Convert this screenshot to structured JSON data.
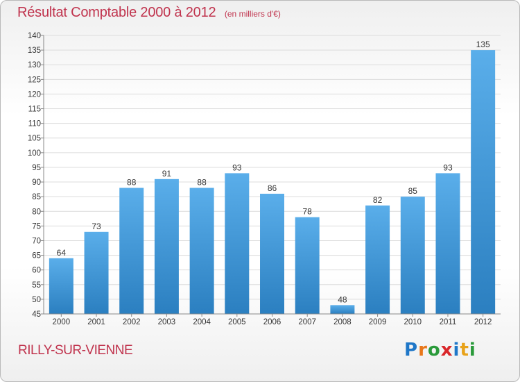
{
  "title": "Résultat Comptable 2000 à 2012",
  "subtitle": "(en milliers d'€)",
  "commune": "RILLY-SUR-VIENNE",
  "logo": {
    "letters": [
      {
        "char": "P",
        "color": "#1f77c8"
      },
      {
        "char": "r",
        "color": "#e8771a"
      },
      {
        "char": "o",
        "color": "#2a9a3a"
      },
      {
        "char": "x",
        "color": "#d9262a"
      },
      {
        "char": "i",
        "color": "#1f77c8"
      },
      {
        "char": "t",
        "color": "#e8a21a"
      },
      {
        "char": "i",
        "color": "#2a9a3a"
      }
    ]
  },
  "colors": {
    "bar_top": "#5aaeea",
    "bar_bottom": "#2b7fc0",
    "accent": "#c0334d",
    "grid": "#dcdcdc",
    "axis": "#888888"
  },
  "chart_data": {
    "type": "bar",
    "categories": [
      "2000",
      "2001",
      "2002",
      "2003",
      "2004",
      "2005",
      "2006",
      "2007",
      "2008",
      "2009",
      "2010",
      "2011",
      "2012"
    ],
    "values": [
      64,
      73,
      88,
      91,
      88,
      93,
      86,
      78,
      48,
      82,
      85,
      93,
      135
    ],
    "ylim": [
      45,
      140
    ],
    "yticks": [
      45,
      50,
      55,
      60,
      65,
      70,
      75,
      80,
      85,
      90,
      95,
      100,
      105,
      110,
      115,
      120,
      125,
      130,
      135,
      140
    ],
    "grid": true,
    "title": "Résultat Comptable 2000 à 2012",
    "xlabel": "",
    "ylabel": ""
  }
}
